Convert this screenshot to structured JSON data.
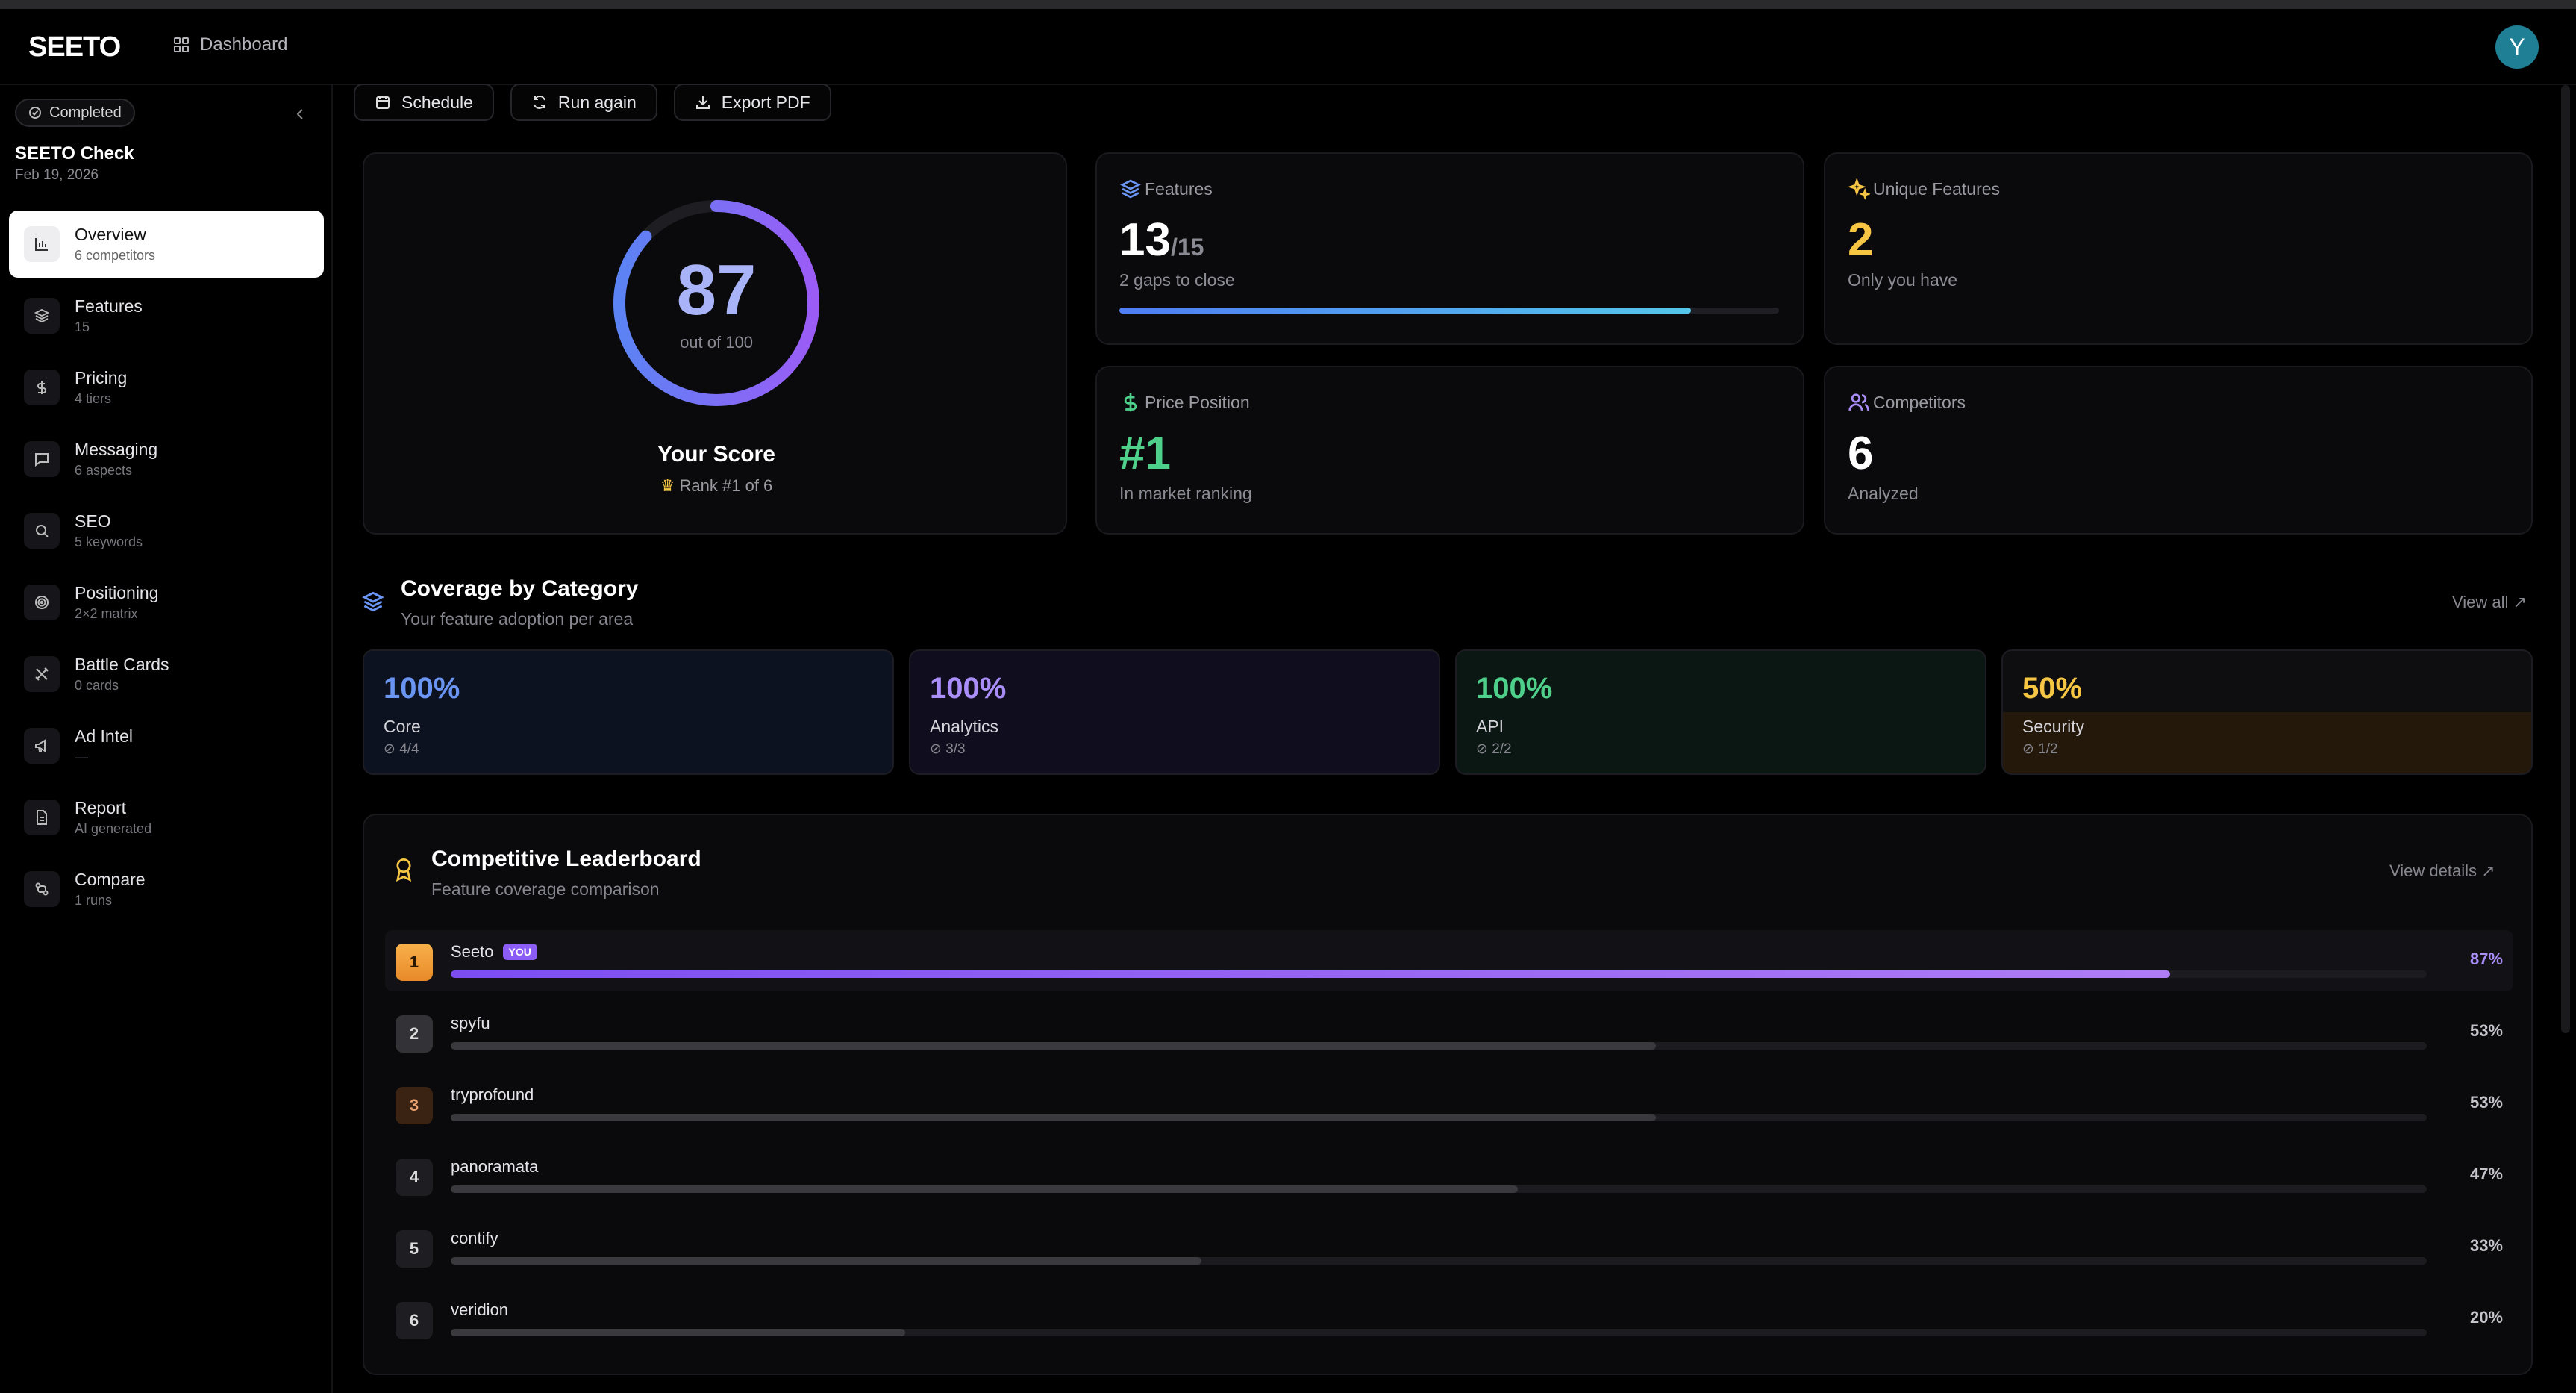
{
  "header": {
    "logo": "SEETO",
    "dashboard_label": "Dashboard",
    "avatar_initial": "Y"
  },
  "sidebar": {
    "status": "Completed",
    "check_title": "SEETO Check",
    "check_date": "Feb 19, 2026",
    "items": [
      {
        "label": "Overview",
        "sub": "6 competitors",
        "icon": "bar-chart-icon"
      },
      {
        "label": "Features",
        "sub": "15",
        "icon": "layers-icon"
      },
      {
        "label": "Pricing",
        "sub": "4 tiers",
        "icon": "dollar-icon"
      },
      {
        "label": "Messaging",
        "sub": "6 aspects",
        "icon": "chat-icon"
      },
      {
        "label": "SEO",
        "sub": "5 keywords",
        "icon": "search-icon"
      },
      {
        "label": "Positioning",
        "sub": "2×2 matrix",
        "icon": "target-icon"
      },
      {
        "label": "Battle Cards",
        "sub": "0 cards",
        "icon": "swords-icon"
      },
      {
        "label": "Ad Intel",
        "sub": "—",
        "icon": "megaphone-icon"
      },
      {
        "label": "Report",
        "sub": "AI generated",
        "icon": "document-icon"
      },
      {
        "label": "Compare",
        "sub": "1 runs",
        "icon": "compare-icon"
      }
    ]
  },
  "toolbar": {
    "schedule": "Schedule",
    "run_again": "Run again",
    "export_pdf": "Export PDF"
  },
  "score": {
    "value": "87",
    "out_of": "out of 100",
    "title": "Your Score",
    "rank": "Rank #1 of 6",
    "fraction": 0.87
  },
  "stats": {
    "features": {
      "label": "Features",
      "value": "13",
      "total": "/15",
      "desc": "2 gaps to close",
      "progress": 0.867
    },
    "unique": {
      "label": "Unique Features",
      "value": "2",
      "desc": "Only you have",
      "color": "#f5c543"
    },
    "price": {
      "label": "Price Position",
      "value": "#1",
      "desc": "In market ranking",
      "color": "#4fd08a"
    },
    "competitors": {
      "label": "Competitors",
      "value": "6",
      "desc": "Analyzed"
    }
  },
  "coverage": {
    "title": "Coverage by Category",
    "subtitle": "Your feature adoption per area",
    "view_all": "View all ↗",
    "items": [
      {
        "pct": "100%",
        "name": "Core",
        "count": "4/4",
        "color": "#6b95f2"
      },
      {
        "pct": "100%",
        "name": "Analytics",
        "count": "3/3",
        "color": "#a98df8"
      },
      {
        "pct": "100%",
        "name": "API",
        "count": "2/2",
        "color": "#4fd08a"
      },
      {
        "pct": "50%",
        "name": "Security",
        "count": "1/2",
        "color": "#f5c543"
      }
    ]
  },
  "leaderboard": {
    "title": "Competitive Leaderboard",
    "subtitle": "Feature coverage comparison",
    "view_details": "View details ↗",
    "you_badge": "YOU",
    "rows": [
      {
        "rank": "1",
        "name": "Seeto",
        "pct": "87%",
        "value": 0.87,
        "me": true
      },
      {
        "rank": "2",
        "name": "spyfu",
        "pct": "53%",
        "value": 0.61
      },
      {
        "rank": "3",
        "name": "tryprofound",
        "pct": "53%",
        "value": 0.61
      },
      {
        "rank": "4",
        "name": "panoramata",
        "pct": "47%",
        "value": 0.54
      },
      {
        "rank": "5",
        "name": "contify",
        "pct": "33%",
        "value": 0.38
      },
      {
        "rank": "6",
        "name": "veridion",
        "pct": "20%",
        "value": 0.23
      }
    ]
  }
}
